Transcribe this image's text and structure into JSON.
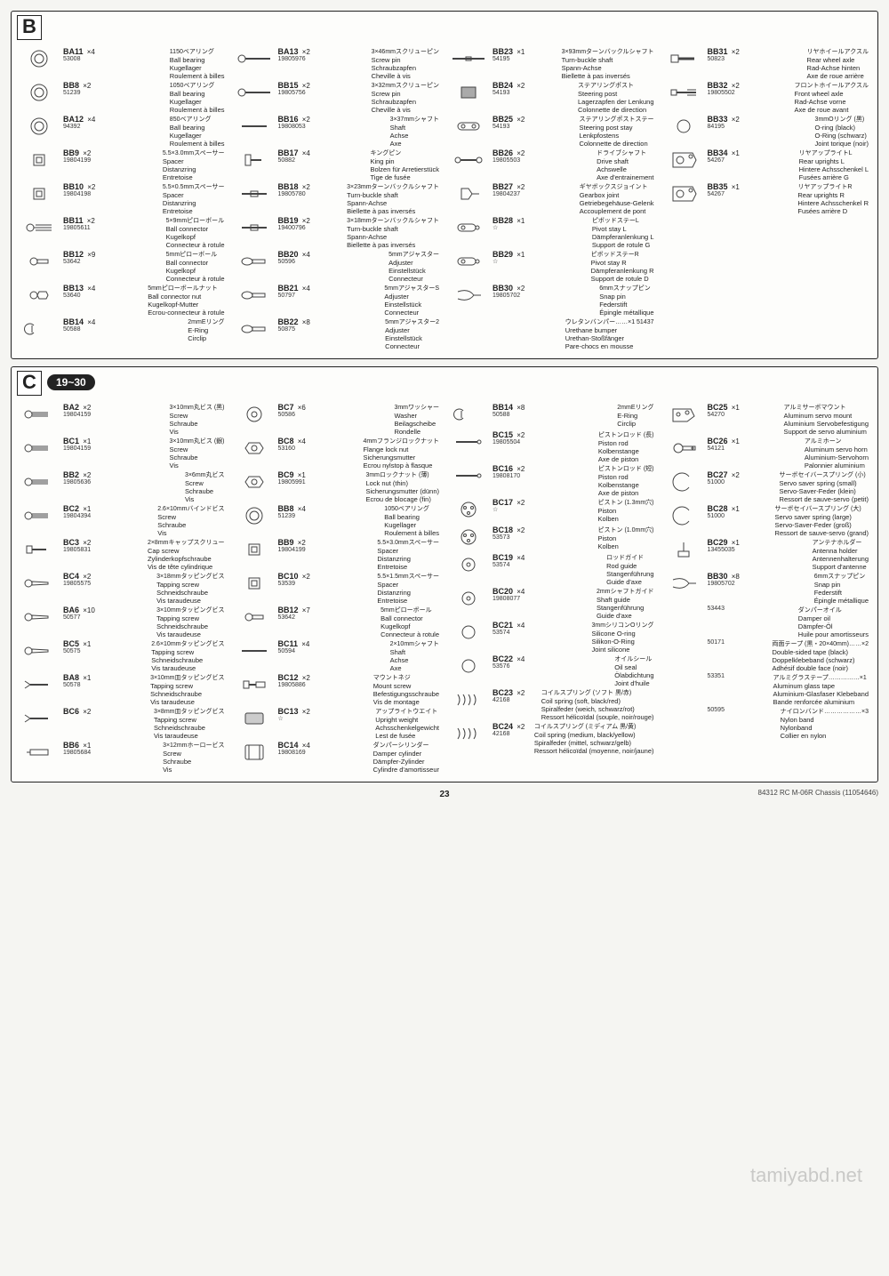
{
  "page_number": "23",
  "footer_text": "84312 RC M-06R Chassis (11054646)",
  "watermark": "tamiyabd.net",
  "sectionB": {
    "label": "B",
    "columns": [
      [
        {
          "code": "BA11",
          "qty": "×4",
          "num": "53008",
          "jp": "1150ベアリング",
          "en": "Ball bearing",
          "de": "Kugellager",
          "fr": "Roulement à billes",
          "icon": "ring"
        },
        {
          "code": "BB8",
          "qty": "×2",
          "num": "51239",
          "jp": "1050ベアリング",
          "en": "Ball bearing",
          "de": "Kugellager",
          "fr": "Roulement à billes",
          "icon": "ring"
        },
        {
          "code": "BA12",
          "qty": "×4",
          "num": "94392",
          "jp": "850ベアリング",
          "en": "Ball bearing",
          "de": "Kugellager",
          "fr": "Roulement à billes",
          "icon": "ring"
        },
        {
          "code": "BB9",
          "qty": "×2",
          "num": "19804199",
          "jp": "5.5×3.0mmスペーサー",
          "en": "Spacer",
          "de": "Distanzring",
          "fr": "Entretoise",
          "icon": "spacer"
        },
        {
          "code": "BB10",
          "qty": "×2",
          "num": "19804198",
          "jp": "5.5×0.5mmスペーサー",
          "en": "Spacer",
          "de": "Distanzring",
          "fr": "Entretoise",
          "icon": "spacer"
        },
        {
          "code": "BB11",
          "qty": "×2",
          "num": "19805611",
          "jp": "5×9mmピローボール",
          "en": "Ball connector",
          "de": "Kugelkopf",
          "fr": "Connecteur à rotule",
          "icon": "ballscrew"
        },
        {
          "code": "BB12",
          "qty": "×9",
          "num": "53642",
          "jp": "5mmピローボール",
          "en": "Ball connector",
          "de": "Kugelkopf",
          "fr": "Connecteur à rotule",
          "icon": "ball"
        },
        {
          "code": "BB13",
          "qty": "×4",
          "num": "53640",
          "jp": "5mmピローボールナット",
          "en": "Ball connector nut",
          "de": "Kugelkopf-Mutter",
          "fr": "Ecrou-connecteur à rotule",
          "icon": "ballnut"
        },
        {
          "code": "BB14",
          "qty": "×4",
          "num": "50588",
          "jp": "2mmEリング",
          "en": "E-Ring",
          "de": "",
          "fr": "Circlip",
          "icon": "ering"
        }
      ],
      [
        {
          "code": "BA13",
          "qty": "×2",
          "num": "19805976",
          "jp": "3×46mmスクリューピン",
          "en": "Screw pin",
          "de": "Schraubzapfen",
          "fr": "Cheville à vis",
          "icon": "longscrew"
        },
        {
          "code": "BB15",
          "qty": "×2",
          "num": "19805756",
          "jp": "3×32mmスクリューピン",
          "en": "Screw pin",
          "de": "Schraubzapfen",
          "fr": "Cheville à vis",
          "icon": "longscrew"
        },
        {
          "code": "BB16",
          "qty": "×2",
          "num": "19808053",
          "jp": "3×37mmシャフト",
          "en": "Shaft",
          "de": "Achse",
          "fr": "Axe",
          "icon": "shaft"
        },
        {
          "code": "BB17",
          "qty": "×4",
          "num": "50882",
          "jp": "キングピン",
          "en": "King pin",
          "de": "Bolzen für Arretierstück",
          "fr": "Tige de fusée",
          "icon": "kingpin"
        },
        {
          "code": "BB18",
          "qty": "×2",
          "num": "19805780",
          "jp": "3×23mmターンバックルシャフト",
          "en": "Turn-buckle shaft",
          "de": "Spann-Achse",
          "fr": "Biellette à pas inversés",
          "icon": "turnbuckle"
        },
        {
          "code": "BB19",
          "qty": "×2",
          "num": "19400796",
          "jp": "3×18mmターンバックルシャフト",
          "en": "Turn-buckle shaft",
          "de": "Spann-Achse",
          "fr": "Biellette à pas inversés",
          "icon": "turnbuckle"
        },
        {
          "code": "BB20",
          "qty": "×4",
          "num": "50596",
          "jp": "5mmアジャスター",
          "en": "Adjuster",
          "de": "Einstellstück",
          "fr": "Connecteur",
          "icon": "adjuster"
        },
        {
          "code": "BB21",
          "qty": "×4",
          "num": "50797",
          "jp": "5mmアジャスターS",
          "en": "Adjuster",
          "de": "Einstellstück",
          "fr": "Connecteur",
          "icon": "adjuster"
        },
        {
          "code": "BB22",
          "qty": "×8",
          "num": "50875",
          "jp": "5mmアジャスター2",
          "en": "Adjuster",
          "de": "Einstellstück",
          "fr": "Connecteur",
          "icon": "adjuster"
        }
      ],
      [
        {
          "code": "BB23",
          "qty": "×1",
          "num": "54195",
          "jp": "3×93mmターンバックルシャフト",
          "en": "Turn-buckle shaft",
          "de": "Spann-Achse",
          "fr": "Biellette à pas inversés",
          "icon": "longturnbuckle"
        },
        {
          "code": "BB24",
          "qty": "×2",
          "num": "54193",
          "jp": "ステアリングポスト",
          "en": "Steering post",
          "de": "Lagerzapfen der Lenkung",
          "fr": "Colonnette de direction",
          "icon": "block"
        },
        {
          "code": "BB25",
          "qty": "×2",
          "num": "54193",
          "jp": "ステアリングポストステー",
          "en": "Steering post stay",
          "de": "Lenkpfostens",
          "fr": "Colonnette de direction",
          "icon": "stay"
        },
        {
          "code": "BB26",
          "qty": "×2",
          "num": "19805503",
          "jp": "ドライブシャフト",
          "en": "Drive shaft",
          "de": "Achswelle",
          "fr": "Axe d'entrainement",
          "icon": "driveshaft"
        },
        {
          "code": "BB27",
          "qty": "×2",
          "num": "19804237",
          "jp": "ギヤボックスジョイント",
          "en": "Gearbox joint",
          "de": "Getriebegehäuse-Gelenk",
          "fr": "Accouplement de pont",
          "icon": "joint"
        },
        {
          "code": "BB28",
          "qty": "×1",
          "num": "☆",
          "jp": "ピボッドステーL",
          "en": "Pivot stay L",
          "de": "Dämpferanlenkung L",
          "fr": "Support de rotule G",
          "icon": "pivot"
        },
        {
          "code": "BB29",
          "qty": "×1",
          "num": "☆",
          "jp": "ピボッドステーR",
          "en": "Pivot stay R",
          "de": "Dämpferanlenkung R",
          "fr": "Support de rotule D",
          "icon": "pivot"
        },
        {
          "code": "BB30",
          "qty": "×2",
          "num": "19805702",
          "jp": "6mmスナップピン",
          "en": "Snap pin",
          "de": "Federstift",
          "fr": "Épingle métallique",
          "icon": "snappin"
        },
        {
          "code": "",
          "qty": "",
          "num": "",
          "jp": "ウレタンバンパー……×1  51437",
          "en": "Urethane bumper",
          "de": "Urethan-Stoßfänger",
          "fr": "Pare-chocs en mousse",
          "icon": "none"
        }
      ],
      [
        {
          "code": "BB31",
          "qty": "×2",
          "num": "50823",
          "jp": "リヤホイールアクスル",
          "en": "Rear wheel axle",
          "de": "Rad-Achse hinten",
          "fr": "Axe de roue arrière",
          "icon": "axle"
        },
        {
          "code": "BB32",
          "qty": "×2",
          "num": "19805502",
          "jp": "フロントホイールアクスル",
          "en": "Front wheel axle",
          "de": "Rad-Achse vorne",
          "fr": "Axe de roue avant",
          "icon": "axlescrew"
        },
        {
          "code": "BB33",
          "qty": "×2",
          "num": "84195",
          "jp": "3mmOリング (黒)",
          "en": "O-ring (black)",
          "de": "O-Ring (schwarz)",
          "fr": "Joint torique (noir)",
          "icon": "oring"
        },
        {
          "code": "BB34",
          "qty": "×1",
          "num": "54267",
          "jp": "リヤアップライトL",
          "en": "Rear uprights L",
          "de": "Hintere Achsschenkel L",
          "fr": "Fusées arrière G",
          "icon": "upright"
        },
        {
          "code": "BB35",
          "qty": "×1",
          "num": "54267",
          "jp": "リヤアップライトR",
          "en": "Rear uprights R",
          "de": "Hintere Achsschenkel R",
          "fr": "Fusées arrière D",
          "icon": "upright"
        }
      ]
    ]
  },
  "sectionC": {
    "label": "C",
    "steps": "19~30",
    "columns": [
      [
        {
          "code": "BA2",
          "qty": "×2",
          "num": "19804159",
          "jp": "3×10mm丸ビス (黒)",
          "en": "Screw",
          "de": "Schraube",
          "fr": "Vis",
          "icon": "screw"
        },
        {
          "code": "BC1",
          "qty": "×1",
          "num": "19804159",
          "jp": "3×10mm丸ビス (銀)",
          "en": "Screw",
          "de": "Schraube",
          "fr": "Vis",
          "icon": "screw"
        },
        {
          "code": "BB2",
          "qty": "×2",
          "num": "19805636",
          "jp": "3×6mm丸ビス",
          "en": "Screw",
          "de": "Schraube",
          "fr": "Vis",
          "icon": "screw"
        },
        {
          "code": "BC2",
          "qty": "×1",
          "num": "19804394",
          "jp": "2.6×10mmバインドビス",
          "en": "Screw",
          "de": "Schraube",
          "fr": "Vis",
          "icon": "screw"
        },
        {
          "code": "BC3",
          "qty": "×2",
          "num": "19805831",
          "jp": "2×8mmキャップスクリュー",
          "en": "Cap screw",
          "de": "Zylinderkopfschraube",
          "fr": "Vis de tête cylindrique",
          "icon": "capscrew"
        },
        {
          "code": "BC4",
          "qty": "×2",
          "num": "19805575",
          "jp": "3×18mmタッピングビス",
          "en": "Tapping screw",
          "de": "Schneidschraube",
          "fr": "Vis taraudeuse",
          "icon": "tapscrew"
        },
        {
          "code": "BA6",
          "qty": "×10",
          "num": "50577",
          "jp": "3×10mmタッピングビス",
          "en": "Tapping screw",
          "de": "Schneidschraube",
          "fr": "Vis taraudeuse",
          "icon": "tapscrew"
        },
        {
          "code": "BC5",
          "qty": "×1",
          "num": "50575",
          "jp": "2.6×10mmタッピングビス",
          "en": "Tapping screw",
          "de": "Schneidschraube",
          "fr": "Vis taraudeuse",
          "icon": "tapscrew"
        },
        {
          "code": "BA8",
          "qty": "×1",
          "num": "50578",
          "jp": "3×10mm皿タッピングビス",
          "en": "Tapping screw",
          "de": "Schneidschraube",
          "fr": "Vis taraudeuse",
          "icon": "cskscrew"
        },
        {
          "code": "BC6",
          "qty": "×2",
          "num": "",
          "jp": "3×8mm皿タッピングビス",
          "en": "Tapping screw",
          "de": "Schneidschraube",
          "fr": "Vis taraudeuse",
          "icon": "cskscrew"
        },
        {
          "code": "BB6",
          "qty": "×1",
          "num": "19805684",
          "jp": "3×12mmホーロービス",
          "en": "Screw",
          "de": "Schraube",
          "fr": "Vis",
          "icon": "setscrew"
        }
      ],
      [
        {
          "code": "BC7",
          "qty": "×6",
          "num": "50586",
          "jp": "3mmワッシャー",
          "en": "Washer",
          "de": "Beilagscheibe",
          "fr": "Rondelle",
          "icon": "washer"
        },
        {
          "code": "BC8",
          "qty": "×4",
          "num": "53160",
          "jp": "4mmフランジロックナット",
          "en": "Flange lock nut",
          "de": "Sicherungsmutter",
          "fr": "Ecrou nylstop à flasque",
          "icon": "locknut"
        },
        {
          "code": "BC9",
          "qty": "×1",
          "num": "19805991",
          "jp": "3mmロックナット (薄)",
          "en": "Lock nut (thin)",
          "de": "Sicherungsmutter (dünn)",
          "fr": "Ecrou de blocage (fin)",
          "icon": "locknut"
        },
        {
          "code": "BB8",
          "qty": "×4",
          "num": "51239",
          "jp": "1050ベアリング",
          "en": "Ball bearing",
          "de": "Kugellager",
          "fr": "Roulement à billes",
          "icon": "ring"
        },
        {
          "code": "BB9",
          "qty": "×2",
          "num": "19804199",
          "jp": "5.5×3.0mmスペーサー",
          "en": "Spacer",
          "de": "Distanzring",
          "fr": "Entretoise",
          "icon": "spacer"
        },
        {
          "code": "BC10",
          "qty": "×2",
          "num": "53539",
          "jp": "5.5×1.5mmスペーサー",
          "en": "Spacer",
          "de": "Distanzring",
          "fr": "Entretoise",
          "icon": "spacer"
        },
        {
          "code": "BB12",
          "qty": "×7",
          "num": "53642",
          "jp": "5mmピローボール",
          "en": "Ball connector",
          "de": "Kugelkopf",
          "fr": "Connecteur à rotule",
          "icon": "ball"
        },
        {
          "code": "BC11",
          "qty": "×4",
          "num": "50594",
          "jp": "2×10mmシャフト",
          "en": "Shaft",
          "de": "Achse",
          "fr": "Axe",
          "icon": "shaft"
        },
        {
          "code": "BC12",
          "qty": "×2",
          "num": "19805886",
          "jp": "マウントネジ",
          "en": "Mount screw",
          "de": "Befestigungsschraube",
          "fr": "Vis de montage",
          "icon": "mountscrew"
        },
        {
          "code": "BC13",
          "qty": "×2",
          "num": "☆",
          "jp": "アップライトウエイト",
          "en": "Upright weight",
          "de": "Achsschenkelgewicht",
          "fr": "Lest de fusée",
          "icon": "weight"
        },
        {
          "code": "BC14",
          "qty": "×4",
          "num": "19808169",
          "jp": "ダンパーシリンダー",
          "en": "Damper cylinder",
          "de": "Dämpfer-Zylinder",
          "fr": "Cylindre d'amortisseur",
          "icon": "cylinder"
        }
      ],
      [
        {
          "code": "BB14",
          "qty": "×8",
          "num": "50588",
          "jp": "2mmEリング",
          "en": "E-Ring",
          "de": "",
          "fr": "Circlip",
          "icon": "ering"
        },
        {
          "code": "BC15",
          "qty": "×2",
          "num": "19805504",
          "jp": "ピストンロッド (長)",
          "en": "Piston rod",
          "de": "Kolbenstange",
          "fr": "Axe de piston",
          "icon": "rod"
        },
        {
          "code": "BC16",
          "qty": "×2",
          "num": "19808170",
          "jp": "ピストンロッド (短)",
          "en": "Piston rod",
          "de": "Kolbenstange",
          "fr": "Axe de piston",
          "icon": "rod"
        },
        {
          "code": "BC17",
          "qty": "×2",
          "num": "☆",
          "jp": "ピストン (1.3mm穴)",
          "en": "Piston",
          "de": "Kolben",
          "fr": "",
          "icon": "piston"
        },
        {
          "code": "BC18",
          "qty": "×2",
          "num": "53573",
          "jp": "ピストン (1.0mm穴)",
          "en": "Piston",
          "de": "Kolben",
          "fr": "",
          "icon": "piston"
        },
        {
          "code": "BC19",
          "qty": "×4",
          "num": "53574",
          "jp": "ロッドガイド",
          "en": "Rod guide",
          "de": "Stangenführung",
          "fr": "Guide d'axe",
          "icon": "guide"
        },
        {
          "code": "BC20",
          "qty": "×4",
          "num": "19808077",
          "jp": "2mmシャフトガイド",
          "en": "Shaft guide",
          "de": "Stangenführung",
          "fr": "Guide d'axe",
          "icon": "guide"
        },
        {
          "code": "BC21",
          "qty": "×4",
          "num": "53574",
          "jp": "3mmシリコンOリング",
          "en": "Silicone O-ring",
          "de": "Silikon-O-Ring",
          "fr": "Joint silicone",
          "icon": "oring"
        },
        {
          "code": "BC22",
          "qty": "×4",
          "num": "53576",
          "jp": "オイルシール",
          "en": "Oil seal",
          "de": "Ölabdichtung",
          "fr": "Joint d'huile",
          "icon": "oring"
        },
        {
          "code": "BC23",
          "qty": "×2",
          "num": "42168",
          "jp": "コイルスプリング (ソフト 黒/赤)",
          "en": "Coil spring (soft, black/red)",
          "de": "Spiralfeder (weich, schwarz/rot)",
          "fr": "Ressort hélicoïdal (souple, noir/rouge)",
          "icon": "spring"
        },
        {
          "code": "BC24",
          "qty": "×2",
          "num": "42168",
          "jp": "コイルスプリング (ミディアム 黒/黄)",
          "en": "Coil spring (medium, black/yellow)",
          "de": "Spiralfeder (mittel, schwarz/gelb)",
          "fr": "Ressort hélicoïdal (moyenne, noir/jaune)",
          "icon": "spring"
        }
      ],
      [
        {
          "code": "BC25",
          "qty": "×1",
          "num": "54270",
          "jp": "アルミサーボマウント",
          "en": "Aluminum servo mount",
          "de": "Aluminium Servobefestigung",
          "fr": "Support de servo aluminium",
          "icon": "servomount"
        },
        {
          "code": "BC26",
          "qty": "×1",
          "num": "54121",
          "jp": "アルミホーン",
          "en": "Aluminum servo horn",
          "de": "Aluminium-Servohorn",
          "fr": "Palonnier aluminium",
          "icon": "horn"
        },
        {
          "code": "BC27",
          "qty": "×2",
          "num": "51000",
          "jp": "サーボセイバースプリング (小)",
          "en": "Servo saver spring (small)",
          "de": "Servo-Saver-Feder (klein)",
          "fr": "Ressort de sauve-servo (petit)",
          "icon": "cspring"
        },
        {
          "code": "BC28",
          "qty": "×1",
          "num": "51000",
          "jp": "サーボセイバースプリング (大)",
          "en": "Servo saver spring (large)",
          "de": "Servo-Saver-Feder (groß)",
          "fr": "Ressort de sauve-servo (grand)",
          "icon": "cspring"
        },
        {
          "code": "BC29",
          "qty": "×1",
          "num": "13455035",
          "jp": "アンテナホルダー",
          "en": "Antenna holder",
          "de": "Antennenhalterung",
          "fr": "Support d'antenne",
          "icon": "antenna"
        },
        {
          "code": "BB30",
          "qty": "×8",
          "num": "19805702",
          "jp": "6mmスナップピン",
          "en": "Snap pin",
          "de": "Federstift",
          "fr": "Épingle métallique",
          "icon": "snappin"
        },
        {
          "code": "",
          "qty": "",
          "num": "53443",
          "jp": "ダンパーオイル",
          "en": "Damper oil",
          "de": "Dämpfer-Öl",
          "fr": "Huile pour amortisseurs",
          "icon": "none"
        },
        {
          "code": "",
          "qty": "",
          "num": "50171",
          "jp": "両面テープ (黒・20×40mm)……×2",
          "en": "Double-sided tape (black)",
          "de": "Doppelklebeband (schwarz)",
          "fr": "Adhésif double face (noir)",
          "icon": "none"
        },
        {
          "code": "",
          "qty": "",
          "num": "53351",
          "jp": "アルミグラステープ……………×1",
          "en": "Aluminum glass tape",
          "de": "Aluminium-Glasfaser Klebeband",
          "fr": "Bande renforcée aluminium",
          "icon": "none"
        },
        {
          "code": "",
          "qty": "",
          "num": "50595",
          "jp": "ナイロンバンド………………×3",
          "en": "Nylon band",
          "de": "Nylonband",
          "fr": "Collier en nylon",
          "icon": "none"
        }
      ]
    ]
  }
}
